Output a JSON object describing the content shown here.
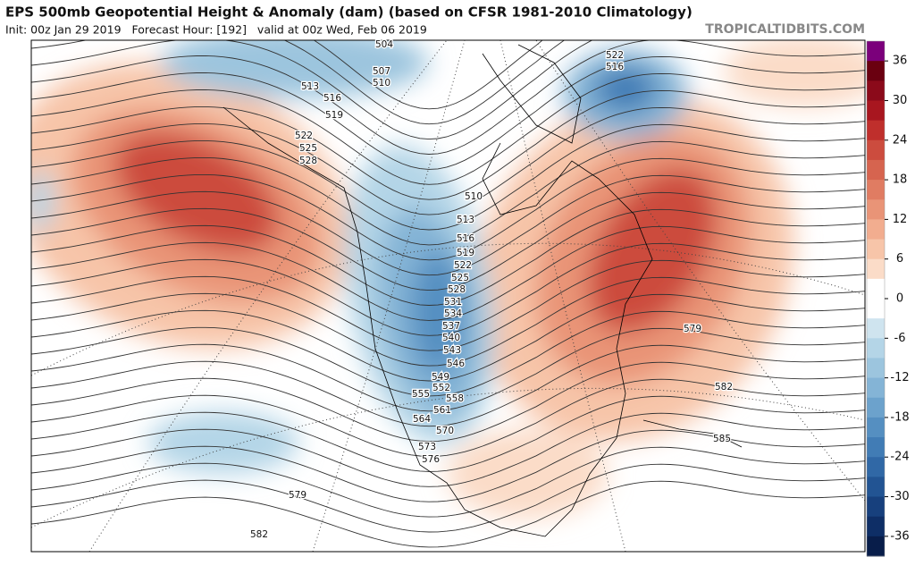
{
  "header": {
    "title": "EPS 500mb Geopotential Height & Anomaly (dam) (based on CFSR 1981-2010 Climatology)",
    "subtitle": "Init: 00z Jan 29 2019   Forecast Hour: [192]   valid at 00z Wed, Feb 06 2019",
    "site": "TROPICALTIDBITS.COM"
  },
  "colorbar": {
    "range": [
      -39,
      39
    ],
    "ticks": [
      36,
      30,
      24,
      18,
      12,
      6,
      0,
      -6,
      -12,
      -18,
      -24,
      -30,
      -36
    ],
    "colors": [
      "#7b007b",
      "#6a0010",
      "#8b0a1a",
      "#a8161f",
      "#bf2f2c",
      "#cc4c3e",
      "#d6644f",
      "#e07c62",
      "#e99477",
      "#f2ad8f",
      "#f7c5a9",
      "#fbdcc8",
      "#ffffff",
      "#ffffff",
      "#cfe4ef",
      "#b4d5e7",
      "#9cc5de",
      "#84b4d6",
      "#6ca2cc",
      "#558fc1",
      "#417cb5",
      "#3068a6",
      "#225493",
      "#17407d",
      "#0e2e66",
      "#081d4a"
    ]
  },
  "contour_labels": [
    504,
    507,
    510,
    513,
    516,
    519,
    522,
    525,
    528,
    522,
    516,
    510,
    513,
    516,
    519,
    522,
    525,
    528,
    531,
    534,
    537,
    540,
    543,
    546,
    549,
    552,
    555,
    558,
    561,
    564,
    570,
    573,
    576,
    579,
    582,
    579,
    582,
    585
  ]
}
